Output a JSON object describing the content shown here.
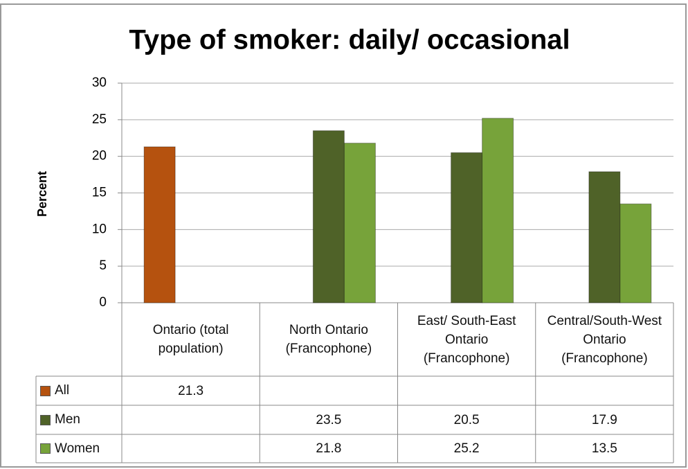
{
  "chart_data": {
    "type": "bar",
    "title": "Type of smoker: daily/ occasional",
    "ylabel": "Percent",
    "categories": [
      "Ontario (total population)",
      "North Ontario (Francophone)",
      "East/ South-East Ontario (Francophone)",
      "Central/South-West Ontario (Francophone)"
    ],
    "series": [
      {
        "name": "All",
        "color": "#b5520f",
        "values": [
          21.3,
          null,
          null,
          null
        ]
      },
      {
        "name": "Men",
        "color": "#4f6228",
        "values": [
          null,
          23.5,
          20.5,
          17.9
        ]
      },
      {
        "name": "Women",
        "color": "#77a33a",
        "values": [
          null,
          21.8,
          25.2,
          13.5
        ]
      }
    ],
    "ylim": [
      0,
      30
    ],
    "yticks": [
      0,
      5,
      10,
      15,
      20,
      25,
      30
    ],
    "grid": true
  }
}
